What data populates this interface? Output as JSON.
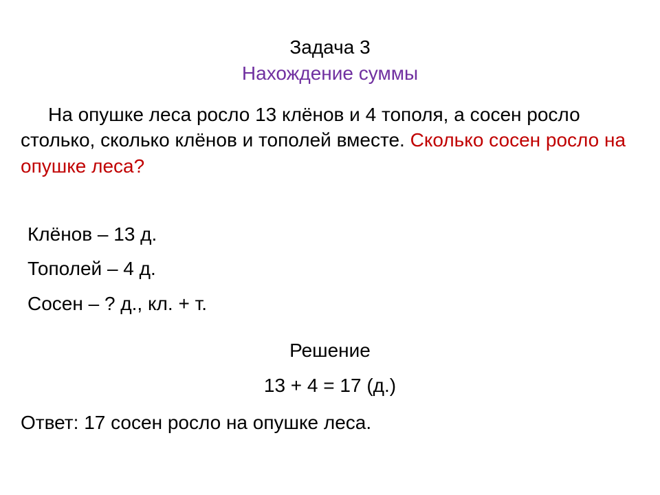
{
  "colors": {
    "background": "#ffffff",
    "text": "#000000",
    "subtitle": "#7030a0",
    "question": "#c00000"
  },
  "typography": {
    "family": "Arial",
    "title_size_pt": 28,
    "body_size_pt": 28
  },
  "title": {
    "line1": "Задача 3",
    "line2": "Нахождение суммы"
  },
  "problem": {
    "text": "На опушке леса росло 13 клёнов и 4 тополя, а сосен росло столько, сколько клёнов и тополей вместе.",
    "question": "Сколько сосен росло на опушке леса?"
  },
  "given": {
    "line1": "Клёнов – 13 д.",
    "line2": "Тополей – 4 д.",
    "line3": "Сосен – ? д., кл. + т."
  },
  "solution": {
    "heading": "Решение",
    "expression": "13 + 4 = 17 (д.)"
  },
  "answer": "Ответ: 17 сосен росло на опушке леса."
}
